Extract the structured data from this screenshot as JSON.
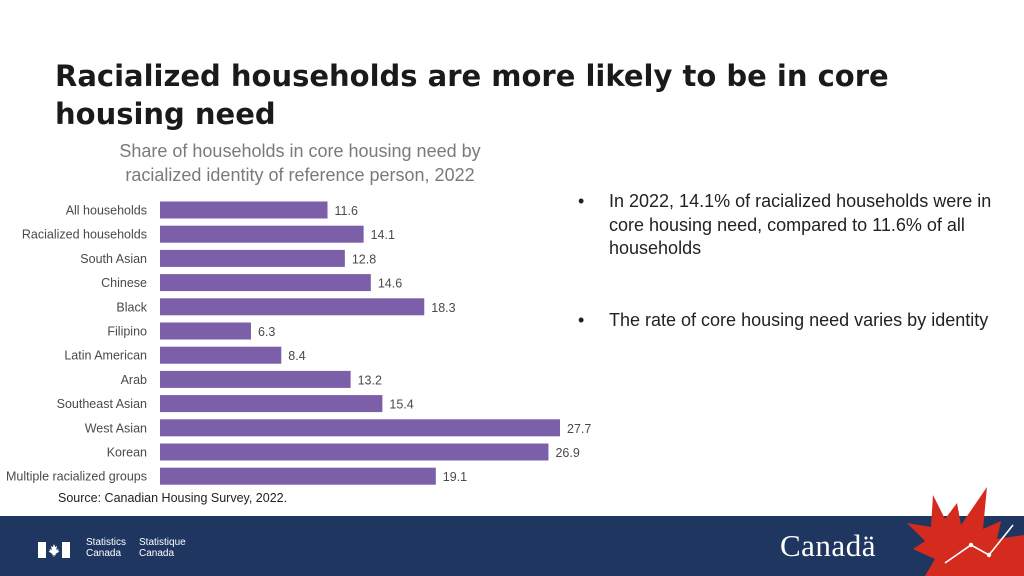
{
  "slide": {
    "title": "Racialized households are more likely to be in core housing need",
    "chart_subtitle_line1": "Share of households in core housing need by",
    "chart_subtitle_line2": "racialized identity of reference person, 2022",
    "source": "Source: Canadian Housing Survey, 2022.",
    "bullets": [
      "In 2022, 14.1% of racialized households were in core housing need, compared to 11.6% of all households",
      "The rate of core housing need varies by identity"
    ],
    "bullet_marker": "•"
  },
  "footer": {
    "agency_en_1": "Statistics",
    "agency_en_2": "Canada",
    "agency_fr_1": "Statistique",
    "agency_fr_2": "Canada",
    "wordmark": "Canadä"
  },
  "colors": {
    "bar": "#7b5fa8",
    "footer": "#1f3760",
    "maple": "#d52b1e"
  },
  "chart_data": {
    "type": "bar",
    "orientation": "horizontal",
    "title": "Share of households in core housing need by racialized identity of reference person, 2022",
    "categories": [
      "All households",
      "Racialized households",
      "South Asian",
      "Chinese",
      "Black",
      "Filipino",
      "Latin American",
      "Arab",
      "Southeast Asian",
      "West Asian",
      "Korean",
      "Multiple racialized groups"
    ],
    "values": [
      11.6,
      14.1,
      12.8,
      14.6,
      18.3,
      6.3,
      8.4,
      13.2,
      15.4,
      27.7,
      26.9,
      19.1
    ],
    "xlabel": "",
    "ylabel": "",
    "xlim": [
      0,
      27.7
    ],
    "grid": false,
    "legend": "none"
  }
}
